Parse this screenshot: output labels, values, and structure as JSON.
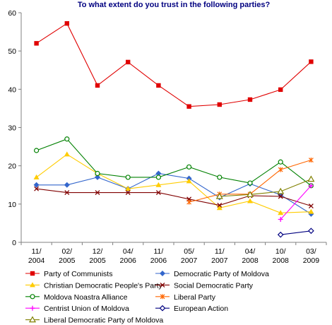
{
  "chart_data": {
    "type": "line",
    "title": "To what extent do you trust in the following parties?",
    "xlabel": "",
    "ylabel": "",
    "categories": [
      "11/\n2004",
      "02/\n2005",
      "12/\n2005",
      "04/\n2006",
      "11/\n2006",
      "05/\n2007",
      "11/\n2007",
      "04/\n2008",
      "10/\n2008",
      "03/\n2009"
    ],
    "ylim": [
      0,
      60
    ],
    "yticks": [
      0,
      10,
      20,
      30,
      40,
      50,
      60
    ],
    "grid": false,
    "legend_position": "bottom",
    "series": [
      {
        "name": "Party of Communists",
        "color": "#e00000",
        "marker": "square",
        "values": [
          52,
          57.2,
          41,
          47.1,
          41,
          35.5,
          36,
          37.3,
          39.9,
          47.2
        ]
      },
      {
        "name": "Democratic Party of Moldova",
        "color": "#3366cc",
        "marker": "diamond",
        "values": [
          15,
          15,
          17,
          14,
          18,
          16.7,
          11.7,
          15.3,
          12.4,
          7.4
        ]
      },
      {
        "name": "Christian Democratic People's Party",
        "color": "#ffcc00",
        "marker": "triangle",
        "values": [
          17,
          23,
          18,
          14,
          15,
          16,
          9,
          10.8,
          7.7,
          8
        ]
      },
      {
        "name": "Social Democratic Party",
        "color": "#800000",
        "marker": "x",
        "values": [
          14,
          13,
          13,
          13,
          13,
          11.3,
          9.7,
          12.2,
          12,
          9.5
        ]
      },
      {
        "name": "Moldova Noastra Alliance",
        "color": "#008000",
        "marker": "circle",
        "values": [
          24,
          27,
          18,
          17,
          17,
          19.7,
          17,
          15.5,
          21,
          14.8
        ]
      },
      {
        "name": "Liberal Party",
        "color": "#ff6600",
        "marker": "star",
        "values": [
          null,
          null,
          null,
          null,
          null,
          10.5,
          12.6,
          12.6,
          19,
          21.5
        ]
      },
      {
        "name": "Centrist Union of Moldova",
        "color": "#ff00ff",
        "marker": "plus",
        "values": [
          null,
          null,
          null,
          null,
          null,
          null,
          null,
          null,
          6,
          14.8
        ]
      },
      {
        "name": "European Action",
        "color": "#000080",
        "marker": "diamond-open",
        "values": [
          null,
          null,
          null,
          null,
          null,
          null,
          null,
          null,
          2,
          3
        ]
      },
      {
        "name": "Liberal Democratic Party of Moldova",
        "color": "#808000",
        "marker": "triangle-open",
        "values": [
          null,
          null,
          null,
          null,
          null,
          null,
          12,
          12.5,
          13.3,
          16.5
        ]
      }
    ]
  }
}
